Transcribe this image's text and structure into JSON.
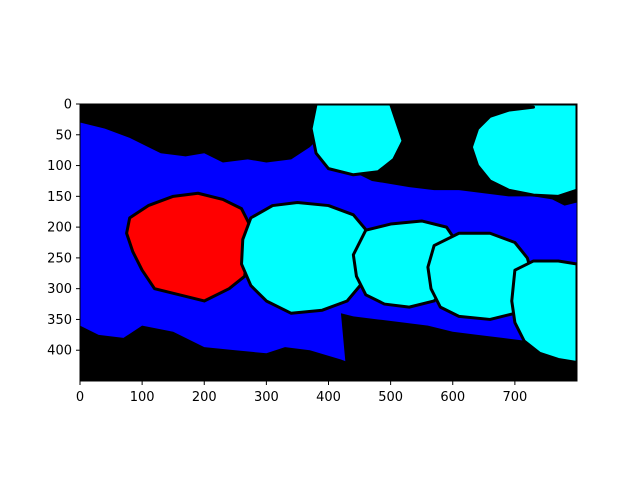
{
  "chart_data": {
    "type": "heatmap",
    "title": "",
    "xlabel": "",
    "ylabel": "",
    "x_range": [
      0,
      800
    ],
    "y_range": [
      0,
      450
    ],
    "y_inverted": true,
    "grid": false,
    "x_ticks": [
      0,
      100,
      200,
      300,
      400,
      500,
      600,
      700
    ],
    "y_ticks": [
      0,
      50,
      100,
      150,
      200,
      250,
      300,
      350,
      400
    ],
    "colors": {
      "background": "#000000",
      "band": "#0000ff",
      "red_region": "#ff0000",
      "cyan_region": "#00ffff"
    },
    "regions": [
      {
        "id": "band",
        "color": "band",
        "points": [
          [
            0,
            0
          ],
          [
            800,
            0
          ],
          [
            800,
            450
          ],
          [
            0,
            450
          ]
        ]
      },
      {
        "id": "black-top",
        "color": "background",
        "points": [
          [
            0,
            0
          ],
          [
            420,
            0
          ],
          [
            410,
            40
          ],
          [
            390,
            50
          ],
          [
            370,
            70
          ],
          [
            340,
            90
          ],
          [
            300,
            95
          ],
          [
            270,
            90
          ],
          [
            230,
            95
          ],
          [
            200,
            80
          ],
          [
            170,
            85
          ],
          [
            130,
            80
          ],
          [
            110,
            70
          ],
          [
            80,
            55
          ],
          [
            40,
            40
          ],
          [
            0,
            30
          ]
        ]
      },
      {
        "id": "black-bottom",
        "color": "background",
        "points": [
          [
            0,
            360
          ],
          [
            30,
            375
          ],
          [
            70,
            380
          ],
          [
            100,
            360
          ],
          [
            150,
            370
          ],
          [
            200,
            395
          ],
          [
            250,
            400
          ],
          [
            300,
            405
          ],
          [
            330,
            395
          ],
          [
            370,
            400
          ],
          [
            420,
            415
          ],
          [
            460,
            430
          ],
          [
            500,
            440
          ],
          [
            550,
            445
          ],
          [
            600,
            440
          ],
          [
            650,
            430
          ],
          [
            700,
            425
          ],
          [
            760,
            430
          ],
          [
            800,
            440
          ],
          [
            800,
            450
          ],
          [
            0,
            450
          ]
        ]
      },
      {
        "id": "black-upper-right",
        "color": "background",
        "points": [
          [
            370,
            0
          ],
          [
            800,
            0
          ],
          [
            800,
            160
          ],
          [
            780,
            165
          ],
          [
            760,
            155
          ],
          [
            730,
            150
          ],
          [
            690,
            150
          ],
          [
            650,
            145
          ],
          [
            610,
            140
          ],
          [
            570,
            140
          ],
          [
            530,
            135
          ],
          [
            500,
            130
          ],
          [
            470,
            125
          ],
          [
            440,
            110
          ],
          [
            420,
            90
          ],
          [
            410,
            60
          ],
          [
            400,
            30
          ]
        ]
      },
      {
        "id": "black-lower-right",
        "color": "background",
        "points": [
          [
            420,
            340
          ],
          [
            440,
            345
          ],
          [
            480,
            350
          ],
          [
            520,
            355
          ],
          [
            560,
            360
          ],
          [
            600,
            370
          ],
          [
            640,
            375
          ],
          [
            680,
            380
          ],
          [
            720,
            385
          ],
          [
            760,
            390
          ],
          [
            800,
            395
          ],
          [
            800,
            450
          ],
          [
            430,
            450
          ]
        ]
      },
      {
        "id": "red-blob",
        "color": "red_region",
        "points": [
          [
            80,
            185
          ],
          [
            110,
            165
          ],
          [
            150,
            150
          ],
          [
            190,
            145
          ],
          [
            230,
            155
          ],
          [
            260,
            170
          ],
          [
            275,
            200
          ],
          [
            270,
            240
          ],
          [
            265,
            280
          ],
          [
            240,
            300
          ],
          [
            200,
            320
          ],
          [
            160,
            310
          ],
          [
            120,
            300
          ],
          [
            100,
            270
          ],
          [
            85,
            240
          ],
          [
            75,
            210
          ]
        ]
      },
      {
        "id": "cyan-1",
        "color": "cyan_region",
        "points": [
          [
            275,
            185
          ],
          [
            310,
            165
          ],
          [
            350,
            160
          ],
          [
            400,
            165
          ],
          [
            440,
            180
          ],
          [
            465,
            210
          ],
          [
            470,
            250
          ],
          [
            455,
            290
          ],
          [
            430,
            320
          ],
          [
            390,
            335
          ],
          [
            340,
            340
          ],
          [
            300,
            320
          ],
          [
            275,
            295
          ],
          [
            260,
            260
          ],
          [
            262,
            220
          ]
        ]
      },
      {
        "id": "cyan-2",
        "color": "cyan_region",
        "points": [
          [
            460,
            205
          ],
          [
            500,
            195
          ],
          [
            550,
            190
          ],
          [
            590,
            200
          ],
          [
            610,
            230
          ],
          [
            605,
            270
          ],
          [
            590,
            300
          ],
          [
            570,
            320
          ],
          [
            530,
            330
          ],
          [
            490,
            325
          ],
          [
            460,
            310
          ],
          [
            445,
            280
          ],
          [
            440,
            245
          ]
        ]
      },
      {
        "id": "cyan-3",
        "color": "cyan_region",
        "points": [
          [
            570,
            230
          ],
          [
            610,
            210
          ],
          [
            660,
            210
          ],
          [
            700,
            225
          ],
          [
            720,
            250
          ],
          [
            730,
            285
          ],
          [
            720,
            320
          ],
          [
            700,
            340
          ],
          [
            660,
            350
          ],
          [
            610,
            345
          ],
          [
            580,
            330
          ],
          [
            565,
            300
          ],
          [
            560,
            265
          ]
        ]
      },
      {
        "id": "cyan-4",
        "color": "cyan_region",
        "points": [
          [
            700,
            270
          ],
          [
            730,
            255
          ],
          [
            770,
            255
          ],
          [
            800,
            260
          ],
          [
            800,
            420
          ],
          [
            770,
            415
          ],
          [
            740,
            405
          ],
          [
            715,
            385
          ],
          [
            700,
            355
          ],
          [
            695,
            320
          ]
        ]
      },
      {
        "id": "cyan-5",
        "color": "cyan_region",
        "points": [
          [
            380,
            0
          ],
          [
            500,
            0
          ],
          [
            510,
            30
          ],
          [
            520,
            60
          ],
          [
            505,
            90
          ],
          [
            480,
            110
          ],
          [
            440,
            115
          ],
          [
            400,
            105
          ],
          [
            380,
            80
          ],
          [
            372,
            40
          ]
        ]
      },
      {
        "id": "cyan-6",
        "color": "cyan_region",
        "points": [
          [
            520,
            0
          ],
          [
            800,
            0
          ],
          [
            800,
            140
          ],
          [
            770,
            150
          ],
          [
            730,
            148
          ],
          [
            690,
            140
          ],
          [
            660,
            125
          ],
          [
            640,
            100
          ],
          [
            630,
            70
          ],
          [
            640,
            40
          ],
          [
            660,
            20
          ],
          [
            690,
            10
          ],
          [
            730,
            5
          ]
        ]
      }
    ]
  }
}
